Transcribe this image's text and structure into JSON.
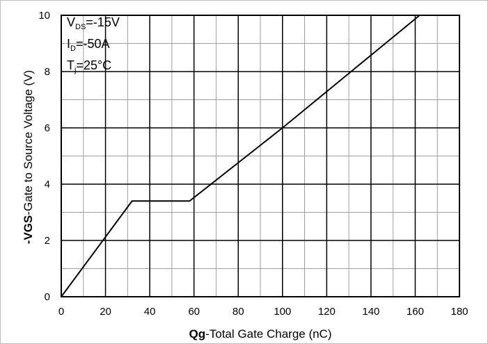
{
  "chart_data": {
    "type": "line",
    "xlabel_bold": "Qg",
    "xlabel_rest": "-Total Gate Charge (nC)",
    "ylabel_bold": "-VGS",
    "ylabel_rest": "-Gate to Source Voltage (V)",
    "xlim": [
      0,
      180
    ],
    "ylim": [
      0,
      10
    ],
    "x_ticks": [
      0,
      20,
      40,
      60,
      80,
      100,
      120,
      140,
      160,
      180
    ],
    "y_ticks": [
      0,
      2,
      4,
      6,
      8,
      10
    ],
    "x_minor_step": 10,
    "y_minor_step": 1,
    "grid": true,
    "conditions": {
      "vds_main": "V",
      "vds_sub": "DS",
      "vds_value": "=-15V",
      "id_main": "I",
      "id_sub": "D",
      "id_value": "=-50A",
      "tj_main": "T",
      "tj_sub": "j",
      "tj_value": "=25°C"
    },
    "series": [
      {
        "x": [
          0,
          32,
          58,
          100,
          162
        ],
        "y": [
          0,
          3.4,
          3.4,
          6.0,
          10.0
        ]
      }
    ]
  },
  "colors": {
    "line": "#000000",
    "major_grid": "#000000",
    "minor_grid": "#9e9e9e",
    "frame_border": "#bdbdbd"
  }
}
